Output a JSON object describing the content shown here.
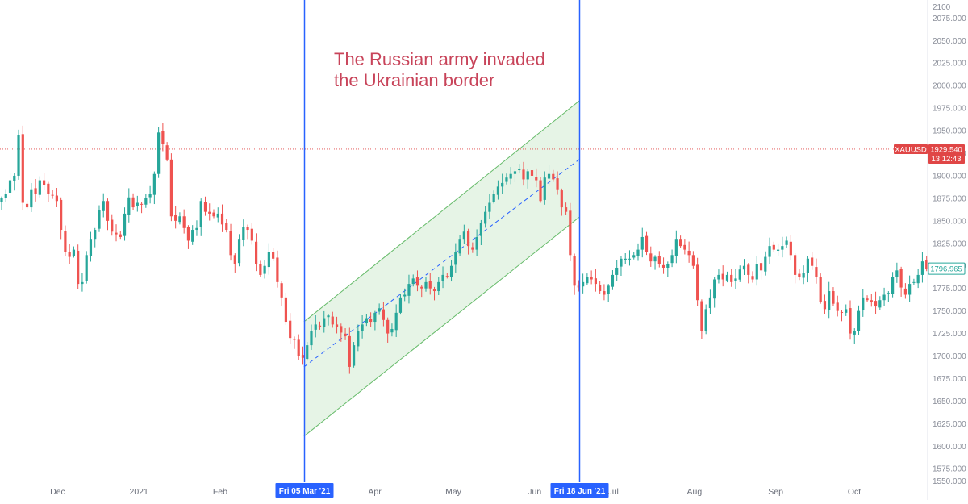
{
  "chart_data": {
    "type": "candlestick",
    "symbol": "XAUUSD",
    "annotation": [
      "The Russian army invaded",
      "the Ukrainian border"
    ],
    "y_axis": {
      "ticks": [
        2075,
        2050,
        2025,
        2000,
        1975,
        1950,
        1925,
        1900,
        1875,
        1850,
        1825,
        1800,
        1775,
        1750,
        1725,
        1700,
        1675,
        1650,
        1625,
        1600,
        1575
      ],
      "tick_labels": [
        "2075.000",
        "2050.000",
        "2025.000",
        "2000.000",
        "1975.000",
        "1950.000",
        "1925.000",
        "1900.000",
        "1875.000",
        "1850.000",
        "1825.000",
        "1800.000",
        "1775.000",
        "1750.000",
        "1725.000",
        "1700.000",
        "1675.000",
        "1650.000",
        "1625.000",
        "1600.000",
        "1575.000"
      ],
      "range": [
        1560,
        2095
      ],
      "top_partial_label": "2100",
      "bottom_partial_label": "1550.000"
    },
    "x_axis": {
      "range": [
        "2020-11-09",
        "2021-10-29"
      ],
      "ticks": [
        {
          "date": "2020-12-01",
          "label": "Dec"
        },
        {
          "date": "2021-01-01",
          "label": "2021"
        },
        {
          "date": "2021-02-01",
          "label": "Feb"
        },
        {
          "date": "2021-04-01",
          "label": "Apr"
        },
        {
          "date": "2021-05-01",
          "label": "May"
        },
        {
          "date": "2021-06-01",
          "label": "Jun"
        },
        {
          "date": "2021-07-01",
          "label": "Jul"
        },
        {
          "date": "2021-08-01",
          "label": "Aug"
        },
        {
          "date": "2021-09-01",
          "label": "Sep"
        },
        {
          "date": "2021-10-01",
          "label": "Oct"
        }
      ]
    },
    "vertical_markers": [
      {
        "date": "2021-03-05",
        "label": "Fri 05 Mar '21"
      },
      {
        "date": "2021-06-18",
        "label": "Fri 18 Jun '21"
      }
    ],
    "channel": {
      "start": "2021-03-05",
      "end": "2021-06-18",
      "upper": [
        1738,
        1983
      ],
      "middle": [
        1688,
        1918
      ],
      "lower": [
        1611,
        1854
      ]
    },
    "price_labels": [
      {
        "label": "XAUUSD",
        "value": "1929.540",
        "sub": "13:12:43",
        "price": 1929.54
      },
      {
        "value": "1796.965",
        "price": 1796.965
      }
    ],
    "closes": [
      [
        0,
        1875
      ],
      [
        1,
        1880
      ],
      [
        2,
        1895
      ],
      [
        3,
        1900
      ],
      [
        4,
        1945
      ],
      [
        5,
        1870
      ],
      [
        6,
        1865
      ],
      [
        7,
        1885
      ],
      [
        8,
        1880
      ],
      [
        9,
        1895
      ],
      [
        10,
        1890
      ],
      [
        11,
        1880
      ],
      [
        12,
        1878
      ],
      [
        13,
        1872
      ],
      [
        14,
        1840
      ],
      [
        15,
        1815
      ],
      [
        16,
        1810
      ],
      [
        17,
        1818
      ],
      [
        18,
        1780
      ],
      [
        19,
        1782
      ],
      [
        20,
        1812
      ],
      [
        21,
        1830
      ],
      [
        22,
        1840
      ],
      [
        23,
        1862
      ],
      [
        24,
        1872
      ],
      [
        25,
        1850
      ],
      [
        26,
        1838
      ],
      [
        27,
        1835
      ],
      [
        28,
        1832
      ],
      [
        29,
        1858
      ],
      [
        30,
        1876
      ],
      [
        31,
        1865
      ],
      [
        32,
        1870
      ],
      [
        33,
        1868
      ],
      [
        34,
        1875
      ],
      [
        35,
        1880
      ],
      [
        36,
        1902
      ],
      [
        37,
        1948
      ],
      [
        38,
        1935
      ],
      [
        39,
        1918
      ],
      [
        40,
        1855
      ],
      [
        41,
        1850
      ],
      [
        42,
        1855
      ],
      [
        43,
        1842
      ],
      [
        44,
        1828
      ],
      [
        45,
        1840
      ],
      [
        46,
        1842
      ],
      [
        47,
        1872
      ],
      [
        48,
        1860
      ],
      [
        49,
        1858
      ],
      [
        50,
        1855
      ],
      [
        51,
        1858
      ],
      [
        52,
        1846
      ],
      [
        53,
        1840
      ],
      [
        54,
        1812
      ],
      [
        55,
        1802
      ],
      [
        56,
        1830
      ],
      [
        57,
        1843
      ],
      [
        58,
        1840
      ],
      [
        59,
        1828
      ],
      [
        60,
        1802
      ],
      [
        61,
        1790
      ],
      [
        62,
        1800
      ],
      [
        63,
        1815
      ],
      [
        64,
        1808
      ],
      [
        65,
        1782
      ],
      [
        66,
        1765
      ],
      [
        67,
        1738
      ],
      [
        68,
        1720
      ],
      [
        69,
        1718
      ],
      [
        70,
        1700
      ],
      [
        71,
        1698
      ],
      [
        72,
        1712
      ],
      [
        73,
        1728
      ],
      [
        74,
        1735
      ],
      [
        75,
        1732
      ],
      [
        76,
        1742
      ],
      [
        77,
        1745
      ],
      [
        78,
        1735
      ],
      [
        79,
        1732
      ],
      [
        80,
        1726
      ],
      [
        81,
        1722
      ],
      [
        82,
        1688
      ],
      [
        83,
        1712
      ],
      [
        84,
        1728
      ],
      [
        85,
        1735
      ],
      [
        86,
        1742
      ],
      [
        87,
        1738
      ],
      [
        88,
        1748
      ],
      [
        89,
        1753
      ],
      [
        90,
        1740
      ],
      [
        91,
        1725
      ],
      [
        92,
        1730
      ],
      [
        93,
        1748
      ],
      [
        94,
        1765
      ],
      [
        95,
        1768
      ],
      [
        96,
        1780
      ],
      [
        97,
        1786
      ],
      [
        98,
        1778
      ],
      [
        99,
        1775
      ],
      [
        100,
        1782
      ],
      [
        101,
        1775
      ],
      [
        102,
        1772
      ],
      [
        103,
        1782
      ],
      [
        104,
        1790
      ],
      [
        105,
        1788
      ],
      [
        106,
        1800
      ],
      [
        107,
        1815
      ],
      [
        108,
        1830
      ],
      [
        109,
        1838
      ],
      [
        110,
        1822
      ],
      [
        111,
        1818
      ],
      [
        112,
        1832
      ],
      [
        113,
        1848
      ],
      [
        114,
        1860
      ],
      [
        115,
        1870
      ],
      [
        116,
        1880
      ],
      [
        117,
        1888
      ],
      [
        118,
        1892
      ],
      [
        119,
        1898
      ],
      [
        120,
        1902
      ],
      [
        121,
        1905
      ],
      [
        122,
        1908
      ],
      [
        123,
        1896
      ],
      [
        124,
        1905
      ],
      [
        125,
        1900
      ],
      [
        126,
        1895
      ],
      [
        127,
        1872
      ],
      [
        128,
        1898
      ],
      [
        129,
        1902
      ],
      [
        130,
        1896
      ],
      [
        131,
        1885
      ],
      [
        132,
        1865
      ],
      [
        133,
        1860
      ],
      [
        134,
        1812
      ],
      [
        135,
        1778
      ],
      [
        136,
        1776
      ],
      [
        137,
        1782
      ],
      [
        138,
        1788
      ],
      [
        139,
        1785
      ],
      [
        140,
        1780
      ],
      [
        141,
        1772
      ],
      [
        142,
        1768
      ],
      [
        143,
        1778
      ],
      [
        144,
        1790
      ],
      [
        145,
        1798
      ],
      [
        146,
        1808
      ],
      [
        147,
        1808
      ],
      [
        148,
        1808
      ],
      [
        149,
        1812
      ],
      [
        150,
        1818
      ],
      [
        151,
        1832
      ],
      [
        152,
        1815
      ],
      [
        153,
        1805
      ],
      [
        154,
        1810
      ],
      [
        155,
        1802
      ],
      [
        156,
        1798
      ],
      [
        157,
        1802
      ],
      [
        158,
        1812
      ],
      [
        159,
        1830
      ],
      [
        160,
        1822
      ],
      [
        161,
        1818
      ],
      [
        162,
        1812
      ],
      [
        163,
        1800
      ],
      [
        164,
        1762
      ],
      [
        165,
        1728
      ],
      [
        166,
        1752
      ],
      [
        167,
        1765
      ],
      [
        168,
        1785
      ],
      [
        169,
        1790
      ],
      [
        170,
        1785
      ],
      [
        171,
        1790
      ],
      [
        172,
        1782
      ],
      [
        173,
        1786
      ],
      [
        174,
        1796
      ],
      [
        175,
        1800
      ],
      [
        176,
        1790
      ],
      [
        177,
        1785
      ],
      [
        178,
        1802
      ],
      [
        179,
        1795
      ],
      [
        180,
        1810
      ],
      [
        181,
        1822
      ],
      [
        182,
        1818
      ],
      [
        183,
        1818
      ],
      [
        184,
        1822
      ],
      [
        185,
        1828
      ],
      [
        186,
        1812
      ],
      [
        187,
        1790
      ],
      [
        188,
        1788
      ],
      [
        189,
        1792
      ],
      [
        190,
        1808
      ],
      [
        191,
        1800
      ],
      [
        192,
        1788
      ],
      [
        193,
        1760
      ],
      [
        194,
        1752
      ],
      [
        195,
        1772
      ],
      [
        196,
        1758
      ],
      [
        197,
        1750
      ],
      [
        198,
        1748
      ],
      [
        199,
        1752
      ],
      [
        200,
        1725
      ],
      [
        201,
        1728
      ],
      [
        202,
        1750
      ],
      [
        203,
        1765
      ],
      [
        204,
        1762
      ],
      [
        205,
        1760
      ],
      [
        206,
        1755
      ],
      [
        207,
        1762
      ],
      [
        208,
        1768
      ],
      [
        209,
        1770
      ],
      [
        210,
        1788
      ],
      [
        211,
        1795
      ],
      [
        212,
        1776
      ],
      [
        213,
        1768
      ],
      [
        214,
        1780
      ],
      [
        215,
        1782
      ],
      [
        216,
        1790
      ],
      [
        217,
        1805
      ],
      [
        218,
        1797
      ]
    ]
  }
}
